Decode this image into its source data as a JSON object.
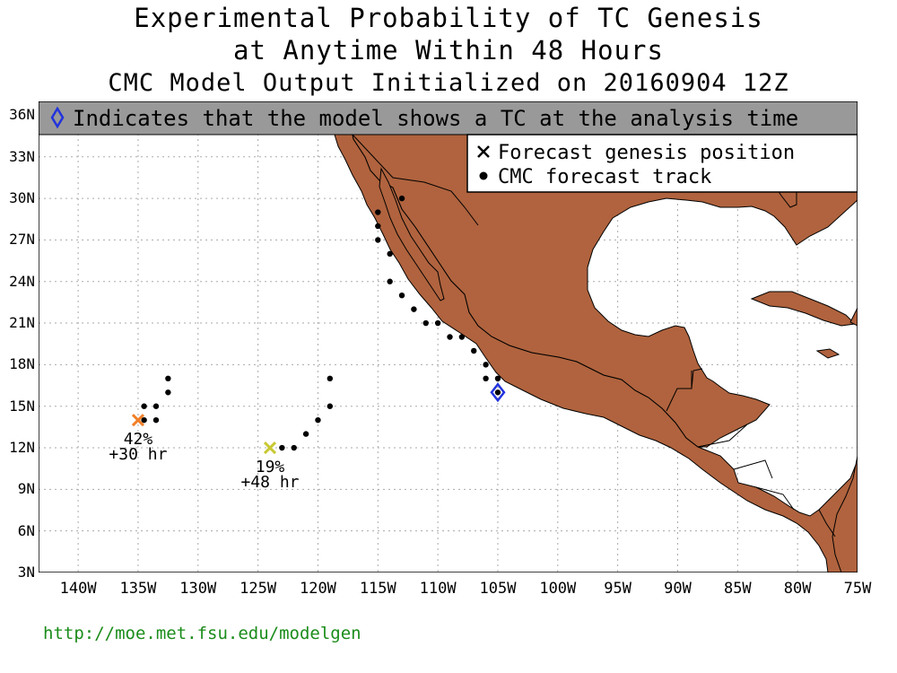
{
  "title": {
    "line1": "Experimental Probability of TC Genesis",
    "line2": "at Anytime Within 48 Hours",
    "line3": "CMC Model Output Initialized on 20160904 12Z"
  },
  "analysis_banner": "Indicates that the model shows a TC at the analysis time",
  "legend": {
    "genesis_label": "Forecast genesis position",
    "track_label": "CMC forecast track"
  },
  "lat_labels": [
    "36N",
    "33N",
    "30N",
    "27N",
    "24N",
    "21N",
    "18N",
    "15N",
    "12N",
    "9N",
    "6N",
    "3N"
  ],
  "lon_labels": [
    "140W",
    "135W",
    "130W",
    "125W",
    "120W",
    "115W",
    "110W",
    "105W",
    "100W",
    "95W",
    "90W",
    "85W",
    "80W",
    "75W"
  ],
  "colors": {
    "land": "#b0633e",
    "banner": "#999999",
    "genesis_orange": "#f07f28",
    "genesis_yellow": "#c8c832",
    "analysis_blue": "#2233dd",
    "url_green": "#1a8c1a"
  },
  "systems": [
    {
      "genesis": {
        "lon": -135,
        "lat": 14
      },
      "probability": "42%",
      "lead": "+30 hr",
      "marker_color": "orange",
      "track": [
        {
          "lon": -132.5,
          "lat": 17
        },
        {
          "lon": -132.5,
          "lat": 16
        },
        {
          "lon": -133.5,
          "lat": 15
        },
        {
          "lon": -134.5,
          "lat": 15
        },
        {
          "lon": -133.5,
          "lat": 14
        },
        {
          "lon": -134.5,
          "lat": 14
        }
      ]
    },
    {
      "genesis": {
        "lon": -124,
        "lat": 12
      },
      "probability": "19%",
      "lead": "+48 hr",
      "marker_color": "yellow",
      "track": [
        {
          "lon": -119,
          "lat": 17
        },
        {
          "lon": -119,
          "lat": 15
        },
        {
          "lon": -120,
          "lat": 14
        },
        {
          "lon": -121,
          "lat": 13
        },
        {
          "lon": -122,
          "lat": 12
        },
        {
          "lon": -123,
          "lat": 12
        }
      ]
    },
    {
      "analysis": {
        "lon": -105,
        "lat": 16
      },
      "track": [
        {
          "lon": -105,
          "lat": 16
        },
        {
          "lon": -105,
          "lat": 17
        },
        {
          "lon": -106,
          "lat": 17
        },
        {
          "lon": -106,
          "lat": 18
        },
        {
          "lon": -107,
          "lat": 19
        },
        {
          "lon": -108,
          "lat": 20
        },
        {
          "lon": -109,
          "lat": 20
        },
        {
          "lon": -110,
          "lat": 21
        },
        {
          "lon": -111,
          "lat": 21
        },
        {
          "lon": -112,
          "lat": 22
        },
        {
          "lon": -113,
          "lat": 23
        },
        {
          "lon": -114,
          "lat": 24
        },
        {
          "lon": -115,
          "lat": 27
        },
        {
          "lon": -115,
          "lat": 28
        },
        {
          "lon": -114,
          "lat": 26
        },
        {
          "lon": -115,
          "lat": 29
        },
        {
          "lon": -113,
          "lat": 30
        }
      ]
    }
  ],
  "footer_url": "http://moe.met.fsu.edu/modelgen"
}
